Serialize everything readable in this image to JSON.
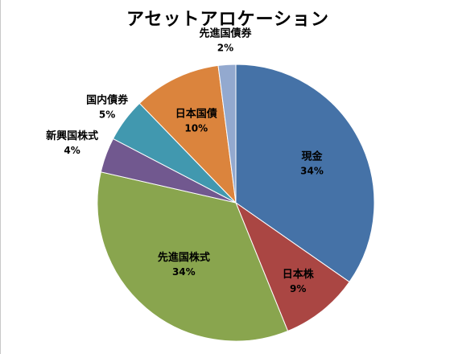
{
  "chart_data": {
    "type": "pie",
    "title": "アセットアロケーション",
    "slices": [
      {
        "label": "現金",
        "value": 34,
        "display": "34%",
        "color": "#4572A7"
      },
      {
        "label": "日本株",
        "value": 9,
        "display": "9%",
        "color": "#AA4643"
      },
      {
        "label": "先進国株式",
        "value": 34,
        "display": "34%",
        "color": "#89A54E"
      },
      {
        "label": "新興国株式",
        "value": 4,
        "display": "4%",
        "color": "#71588F"
      },
      {
        "label": "国内債券",
        "value": 5,
        "display": "5%",
        "color": "#4198AF"
      },
      {
        "label": "日本国債",
        "value": 10,
        "display": "10%",
        "color": "#DB843D"
      },
      {
        "label": "先進国債券",
        "value": 2,
        "display": "2%",
        "color": "#93A9CF"
      }
    ],
    "legend": "none"
  }
}
